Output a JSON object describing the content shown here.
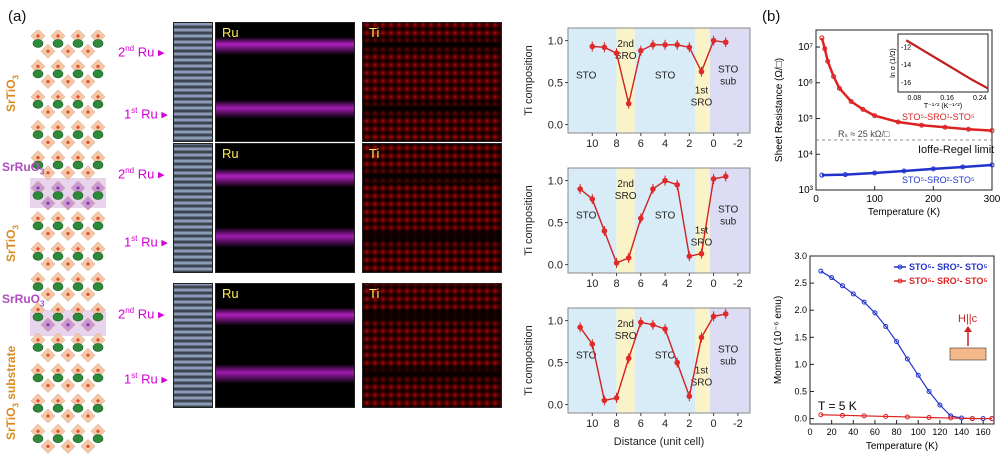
{
  "panel_a_label": "(a)",
  "panel_b_label": "(b)",
  "structure": {
    "layers": [
      {
        "label": "SrTiO",
        "sub": "3"
      },
      {
        "label": "SrRuO",
        "sub": "3"
      },
      {
        "label": "SrTiO",
        "sub": "3"
      },
      {
        "label": "SrRuO",
        "sub": "3"
      },
      {
        "label": "SrTiO",
        "sub": "3",
        "suffix": " substrate"
      }
    ]
  },
  "rows": [
    {
      "ru_label_2": "2",
      "ru_label_1": "1",
      "sup2": "nd",
      "sup1": "st",
      "ru_word": "Ru",
      "ru_img": "Ru",
      "ti_img": "Ti"
    },
    {
      "ru_label_2": "2",
      "ru_label_1": "1",
      "sup2": "nd",
      "sup1": "st",
      "ru_word": "Ru",
      "ru_img": "Ru",
      "ti_img": "Ti"
    },
    {
      "ru_label_2": "2",
      "ru_label_1": "1",
      "sup2": "nd",
      "sup1": "st",
      "ru_word": "Ru",
      "ru_img": "Ru",
      "ti_img": "Ti"
    }
  ],
  "chart_data": [
    {
      "type": "line",
      "ylabel": "Ti composition",
      "xlabel": "",
      "xlim": [
        12,
        -3
      ],
      "ylim": [
        -0.1,
        1.15
      ],
      "xticks": [
        10,
        8,
        6,
        4,
        2,
        0,
        -2
      ],
      "yticks": [
        0.0,
        0.5,
        1.0
      ],
      "regions": [
        "STO",
        "2nd SRO",
        "STO",
        "1st SRO",
        "STO sub"
      ],
      "series": [
        {
          "x": [
            10,
            9,
            8,
            7,
            6,
            5,
            4,
            3,
            2,
            1,
            0,
            -1
          ],
          "y": [
            0.93,
            0.92,
            0.85,
            0.25,
            0.88,
            0.95,
            0.95,
            0.95,
            0.92,
            0.63,
            1.0,
            0.98
          ]
        }
      ]
    },
    {
      "type": "line",
      "ylabel": "Ti composition",
      "xlabel": "",
      "xlim": [
        12,
        -3
      ],
      "ylim": [
        -0.1,
        1.15
      ],
      "xticks": [
        10,
        8,
        6,
        4,
        2,
        0,
        -2
      ],
      "yticks": [
        0.0,
        0.5,
        1.0
      ],
      "regions": [
        "STO",
        "2nd SRO",
        "STO",
        "1st SRO",
        "STO sub"
      ],
      "series": [
        {
          "x": [
            11,
            10,
            9,
            8,
            7,
            6,
            5,
            4,
            3,
            2,
            1,
            0,
            -1
          ],
          "y": [
            0.9,
            0.78,
            0.4,
            0.02,
            0.08,
            0.55,
            0.9,
            1.0,
            0.95,
            0.1,
            0.13,
            1.02,
            1.05
          ]
        }
      ]
    },
    {
      "type": "line",
      "ylabel": "Ti composition",
      "xlabel": "Distance (unit cell)",
      "xlim": [
        12,
        -3
      ],
      "ylim": [
        -0.1,
        1.15
      ],
      "xticks": [
        10,
        8,
        6,
        4,
        2,
        0,
        -2
      ],
      "yticks": [
        0.0,
        0.5,
        1.0
      ],
      "regions": [
        "STO",
        "2nd SRO",
        "STO",
        "1st SRO",
        "STO sub"
      ],
      "series": [
        {
          "x": [
            11,
            10,
            9,
            8,
            7,
            6,
            5,
            4,
            3,
            2,
            1,
            0,
            -1
          ],
          "y": [
            0.92,
            0.72,
            0.05,
            0.08,
            0.55,
            0.98,
            0.95,
            0.9,
            0.5,
            0.1,
            0.8,
            1.05,
            1.08
          ]
        }
      ]
    },
    {
      "type": "line",
      "xlabel": "Temperature (K)",
      "ylabel": "Sheet Resistance (Ω/□)",
      "xlim": [
        0,
        300
      ],
      "ylog": true,
      "ylim": [
        1000,
        30000000
      ],
      "xticks": [
        0,
        100,
        200,
        300
      ],
      "ytick_labels": [
        "10³",
        "10⁴",
        "10⁵",
        "10⁶",
        "10⁷"
      ],
      "annotations": [
        "R",
        "ℎ ≈ 25 kΩ/□",
        "Ioffe-Regel limit"
      ],
      "rs_label": "Rₛ ≈ 25 kΩ/□",
      "limit_label": "Ioffe-Regel limit",
      "series": [
        {
          "name": "STO⁵-SRO¹-STO⁵",
          "x": [
            10,
            15,
            20,
            30,
            40,
            60,
            80,
            100,
            140,
            180,
            220,
            260,
            300
          ],
          "y": [
            18000000,
            9000000,
            4000000,
            1500000,
            700000,
            300000,
            180000,
            120000,
            80000,
            65000,
            57000,
            50000,
            46000
          ]
        },
        {
          "name": "STO⁵-SRO²-STO⁵",
          "x": [
            10,
            50,
            100,
            150,
            200,
            250,
            300
          ],
          "y": [
            2600,
            2700,
            3000,
            3400,
            3900,
            4400,
            5000
          ]
        }
      ],
      "inset": {
        "xlabel": "T⁻¹ᐟ² (K⁻¹ᐟ²)",
        "ylabel": "ln σ (1/Ω)",
        "xticks": [
          "0.08",
          "0.16",
          "0.24"
        ],
        "yticks": [
          "-12",
          "-14",
          "-16"
        ],
        "x": [
          0.06,
          0.1,
          0.14,
          0.18,
          0.22,
          0.26
        ],
        "y": [
          -11.2,
          -12.3,
          -13.4,
          -14.5,
          -15.6,
          -16.6
        ]
      }
    },
    {
      "type": "scatter",
      "xlabel": "Temperature (K)",
      "ylabel": "Moment (10⁻⁶ emu)",
      "xlim": [
        0,
        170
      ],
      "ylim": [
        -0.1,
        3.0
      ],
      "xticks": [
        0,
        20,
        40,
        60,
        80,
        100,
        120,
        140,
        160
      ],
      "yticks": [
        0.0,
        0.5,
        1.0,
        1.5,
        2.0,
        2.5,
        3.0
      ],
      "annotation_T": "T = 5 K",
      "annotation_H": "H||c",
      "series": [
        {
          "name": "STO⁵- SRO²- STO⁵",
          "color": "#2233cc",
          "x": [
            10,
            20,
            30,
            40,
            50,
            60,
            70,
            80,
            90,
            100,
            110,
            120,
            130,
            140,
            150,
            160,
            168
          ],
          "y": [
            2.72,
            2.6,
            2.45,
            2.3,
            2.15,
            1.95,
            1.7,
            1.42,
            1.1,
            0.8,
            0.5,
            0.25,
            0.05,
            0.01,
            0.0,
            0.0,
            0.0
          ]
        },
        {
          "name": "STO⁵- SRO¹- STO⁵",
          "color": "#dd2222",
          "x": [
            10,
            30,
            50,
            70,
            90,
            110,
            130,
            150,
            168
          ],
          "y": [
            0.07,
            0.06,
            0.05,
            0.04,
            0.03,
            0.02,
            0.01,
            0.0,
            0.0
          ]
        }
      ]
    }
  ]
}
